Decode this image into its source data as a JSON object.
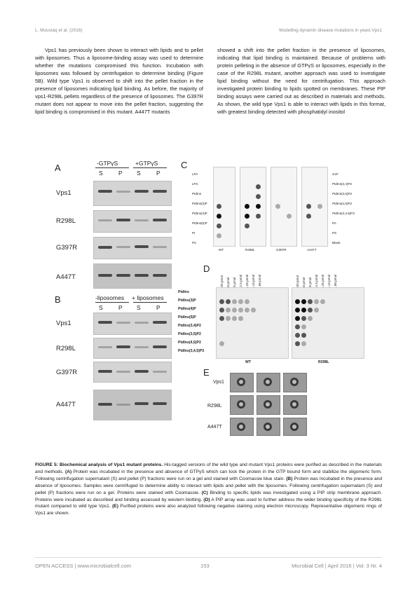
{
  "header": {
    "left": "L. Moustaq et al. (2016)",
    "right": "Modelling dynamin disease mutations in yeast Vps1"
  },
  "body": {
    "left_col": "Vps1 has previously been shown to interact with lipids and to pellet with liposomes. Thus a liposome-binding assay was used to determine whether the mutations compromised this function. Incubation with liposomes was followed by centrifugation to determine binding (Figure 5B). Wild type Vps1 is observed to shift into the pellet fraction in the presence of liposomes indicating lipid binding. As before, the majority of vps1-R298L pellets regardless of the presence of liposomes. The G397R mutant does not appear to move into the pellet fraction, suggesting the lipid binding is compromised in this mutant. A447T mutants",
    "right_col": "showed a shift into the pellet fraction in the presence of liposomes, indicating that lipid binding is maintained. Because of problems with protein pelleting in the absence of GTPγS or liposomes, especially in the case of the R298L mutant, another approach was used to investigate lipid binding without the need for centrifugation. This approach investigated protein binding to lipids spotted on membranes. These PIP binding assays were carried out as described in materials and methods. As shown, the wild type Vps1 is able to interact with lipids in this format, with greatest binding detected with phosphatidyl inositol"
  },
  "figure": {
    "panel_a": {
      "label": "A",
      "group1": "-GTPγS",
      "group2": "+GTPγS",
      "s": "S",
      "p": "P",
      "rows": [
        "Vps1",
        "R298L",
        "G397R",
        "A447T"
      ]
    },
    "panel_b": {
      "label": "B",
      "group1": "-liposomes",
      "group2": "+ liposomes",
      "s": "S",
      "p": "P",
      "rows": [
        "Vps1",
        "R298L",
        "G397R",
        "A447T"
      ]
    },
    "panel_c": {
      "label": "C",
      "left_lipids": [
        "LPA",
        "LPC",
        "PtdIns",
        "PtdIns(3)P",
        "PtdIns(4)P",
        "PtdIns(5)P",
        "PI",
        "PC"
      ],
      "right_lipids": [
        "S1P",
        "PtdIns(3,4)P2",
        "PtdIns(3,5)P2",
        "PtdIns(4,5)P2",
        "PtdIns(3,4,5)P3",
        "PA",
        "PS",
        "Blank"
      ],
      "strips": [
        "WT",
        "R298L",
        "G397R",
        "A447T"
      ]
    },
    "panel_d": {
      "label": "D",
      "amounts": [
        "100 pmol",
        "50 pmol",
        "25 pmol",
        "12.5 pmol",
        "6.25 pmol",
        "3.13 pmol",
        "1.56 pmol"
      ],
      "rows": [
        "PtdIns",
        "PtdIns(3)P",
        "PtdIns(4)P",
        "PtdIns(5)P",
        "PtdIns(3,4)P2",
        "PtdIns(3,5)P2",
        "PtdIns(4,5)P2",
        "PtdIns(3,4,5)P3"
      ],
      "arrays": [
        "WT",
        "R298L"
      ]
    },
    "panel_e": {
      "label": "E",
      "rows": [
        "Vps1",
        "R298L",
        "A447T"
      ]
    }
  },
  "caption": {
    "title": "FIGURE 5: Biochemical analysis of Vps1 mutant proteins.",
    "text": "His-tagged versions of the wild type and mutant Vps1 proteins were purified as described in the materials and methods.",
    "a_label": "(A)",
    "a_text": "Protein was incubated in the presence and absence of GTPγS which can lock the protein in the GTP bound form and stabilize the oligomeric form. Following centrifugation supernatant (S) and pellet (P) fractions were run on a gel and stained with Coomassie blue stain.",
    "b_label": "(B)",
    "b_text": "Protein was incubated in the presence and absence of liposomes. Samples were centrifuged to determine ability to interact with lipids and pellet with the liposomes. Following centrifugation supernatant (S) and pellet (P) fractions were run on a gel. Proteins were stained with Coomassie.",
    "c_label": "(C)",
    "c_text": "Binding to specific lipids was investigated using a PIP strip membrane approach. Proteins were incubated as described and binding assessed by western blotting.",
    "d_label": "(D)",
    "d_text": "A PIP array was used to further address the wider binding specificity of the R298L mutant compared to wild type Vps1.",
    "e_label": "(E)",
    "e_text": "Purified proteins were also analyzed following negative staining using electron microscopy. Representative oligomeric rings of Vps1 are shown."
  },
  "footer": {
    "open_access": "OPEN ACCESS",
    "site": "| www.microbialcell.com",
    "page": "153",
    "journal": "Microbial Cell | April 2016 | Vol. 3 Nr. 4"
  }
}
